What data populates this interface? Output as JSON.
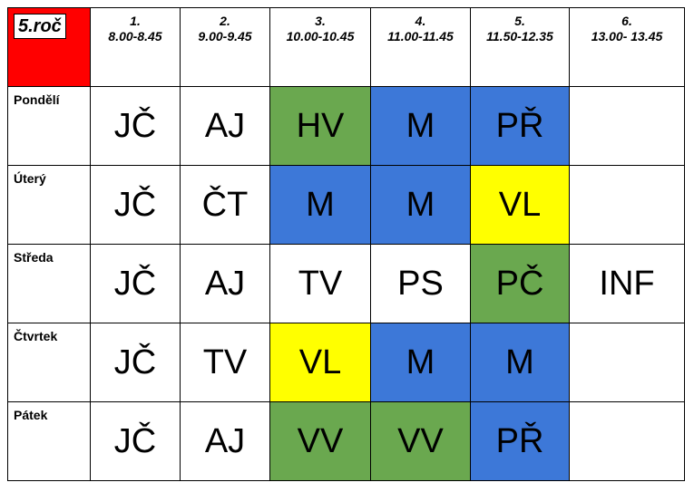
{
  "class_label": "5.roč",
  "periods": [
    {
      "num": "1.",
      "time": "8.00-8.45"
    },
    {
      "num": "2.",
      "time": "9.00-9.45"
    },
    {
      "num": "3.",
      "time": "10.00-10.45"
    },
    {
      "num": "4.",
      "time": "11.00-11.45"
    },
    {
      "num": "5.",
      "time": "11.50-12.35"
    },
    {
      "num": "6.",
      "time": "13.00- 13.45"
    }
  ],
  "days": [
    {
      "name": "Pondělí",
      "lessons": [
        "JČ",
        "AJ",
        "HV",
        "M",
        "PŘ",
        ""
      ]
    },
    {
      "name": "Úterý",
      "lessons": [
        "JČ",
        "ČT",
        "M",
        "M",
        "VL",
        ""
      ]
    },
    {
      "name": "Středa",
      "lessons": [
        "JČ",
        "AJ",
        "TV",
        "PS",
        "PČ",
        "INF"
      ]
    },
    {
      "name": "Čtvrtek",
      "lessons": [
        "JČ",
        "TV",
        "VL",
        "M",
        "M",
        ""
      ]
    },
    {
      "name": "Pátek",
      "lessons": [
        "JČ",
        "AJ",
        "VV",
        "VV",
        "PŘ",
        ""
      ]
    }
  ],
  "colors": {
    "header_corner": "#ff0000",
    "green": "#6aa84f",
    "blue": "#3d78d8",
    "yellow": "#ffff00"
  }
}
